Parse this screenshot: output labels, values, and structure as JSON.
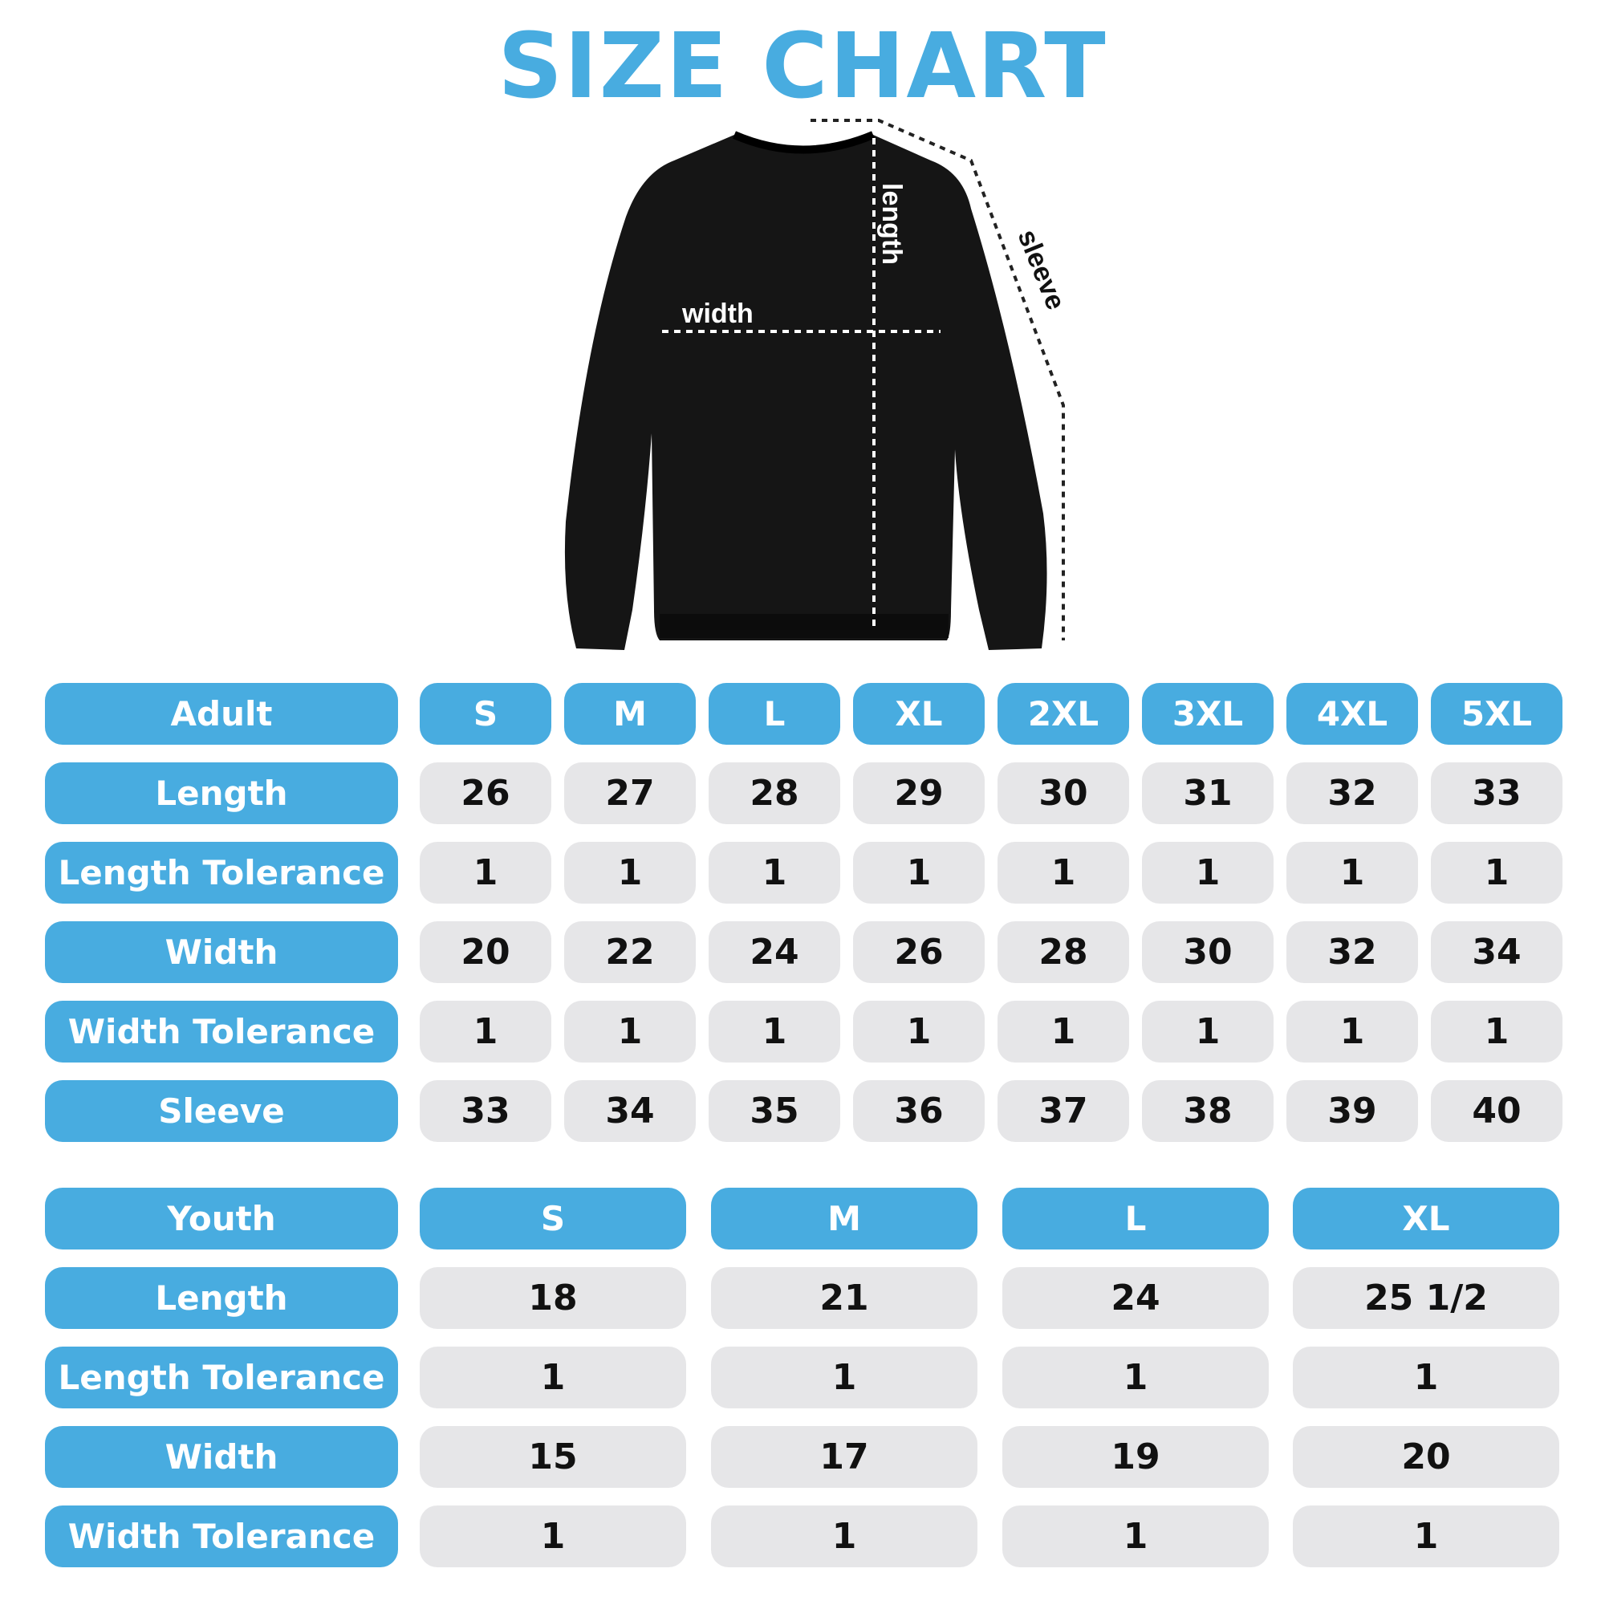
{
  "title": "SIZE CHART",
  "diagram_labels": {
    "width": "width",
    "length": "length",
    "sleeve": "sleeve"
  },
  "colors": {
    "accent": "#48ace0",
    "cell": "#e6e6e8",
    "garment": "#151515"
  },
  "adult": {
    "header": "Adult",
    "sizes": [
      "S",
      "M",
      "L",
      "XL",
      "2XL",
      "3XL",
      "4XL",
      "5XL"
    ],
    "rows": [
      {
        "label": "Length",
        "values": [
          "26",
          "27",
          "28",
          "29",
          "30",
          "31",
          "32",
          "33"
        ]
      },
      {
        "label": "Length Tolerance",
        "values": [
          "1",
          "1",
          "1",
          "1",
          "1",
          "1",
          "1",
          "1"
        ]
      },
      {
        "label": "Width",
        "values": [
          "20",
          "22",
          "24",
          "26",
          "28",
          "30",
          "32",
          "34"
        ]
      },
      {
        "label": "Width Tolerance",
        "values": [
          "1",
          "1",
          "1",
          "1",
          "1",
          "1",
          "1",
          "1"
        ]
      },
      {
        "label": "Sleeve",
        "values": [
          "33",
          "34",
          "35",
          "36",
          "37",
          "38",
          "39",
          "40"
        ]
      }
    ]
  },
  "youth": {
    "header": "Youth",
    "sizes": [
      "S",
      "M",
      "L",
      "XL"
    ],
    "rows": [
      {
        "label": "Length",
        "values": [
          "18",
          "21",
          "24",
          "25 1/2"
        ]
      },
      {
        "label": "Length Tolerance",
        "values": [
          "1",
          "1",
          "1",
          "1"
        ]
      },
      {
        "label": "Width",
        "values": [
          "15",
          "17",
          "19",
          "20"
        ]
      },
      {
        "label": "Width Tolerance",
        "values": [
          "1",
          "1",
          "1",
          "1"
        ]
      }
    ]
  }
}
